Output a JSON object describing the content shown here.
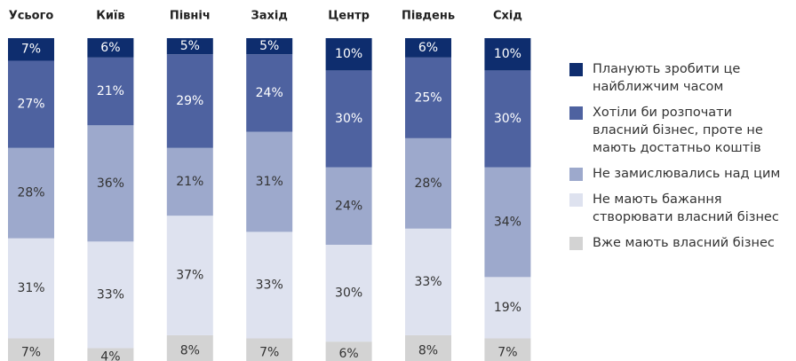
{
  "chart_data": {
    "type": "stacked_bar",
    "categories": [
      "Усього",
      "Київ",
      "Північ",
      "Захід",
      "Центр",
      "Південь",
      "Схід"
    ],
    "series": [
      {
        "name": "Планують зробити це найближчим часом",
        "color": "#0e2d6e",
        "values": [
          7,
          6,
          5,
          5,
          10,
          6,
          10
        ],
        "value_labels": [
          "7%",
          "6%",
          "5%",
          "5%",
          "10%",
          "6%",
          "10%"
        ]
      },
      {
        "name": "Хотіли би розпочати власний бізнес, проте не мають достатньо коштів",
        "color": "#4e62a0",
        "values": [
          27,
          21,
          29,
          24,
          30,
          25,
          30
        ],
        "value_labels": [
          "27%",
          "21%",
          "29%",
          "24%",
          "30%",
          "25%",
          "30%"
        ]
      },
      {
        "name": "Не замислювались над цим",
        "color": "#9da9cc",
        "values": [
          28,
          36,
          21,
          31,
          24,
          28,
          34
        ],
        "value_labels": [
          "28%",
          "36%",
          "21%",
          "31%",
          "24%",
          "28%",
          "34%"
        ]
      },
      {
        "name": "Не мають бажання створювати власний бізнес",
        "color": "#dee2ef",
        "values": [
          31,
          33,
          37,
          33,
          30,
          33,
          19
        ],
        "value_labels": [
          "31%",
          "33%",
          "37%",
          "33%",
          "30%",
          "33%",
          "19%"
        ]
      },
      {
        "name": "Вже мають власний бізнес",
        "color": "#d3d3d3",
        "values": [
          7,
          4,
          8,
          7,
          6,
          8,
          7
        ],
        "value_labels": [
          "7%",
          "4%",
          "8%",
          "7%",
          "6%",
          "8%",
          "7%"
        ]
      }
    ],
    "legend": "right"
  }
}
